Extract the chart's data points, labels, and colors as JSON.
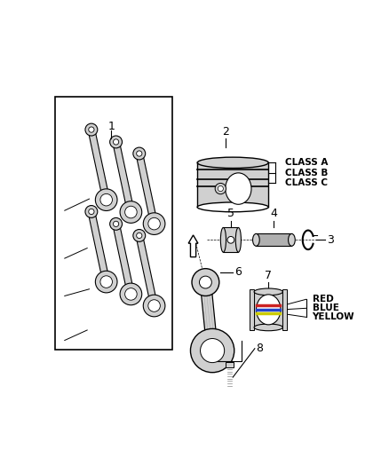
{
  "bg_color": "#ffffff",
  "lc": "#000000",
  "gc": "#d0d0d0",
  "gc2": "#b0b0b0",
  "figsize": [
    4.38,
    5.33
  ],
  "dpi": 100,
  "class_labels": [
    "CLASS A",
    "CLASS B",
    "CLASS C"
  ],
  "color_labels": [
    "RED",
    "BLUE",
    "YELLOW"
  ],
  "color_values": [
    "#cc2222",
    "#2244cc",
    "#cccc00"
  ]
}
